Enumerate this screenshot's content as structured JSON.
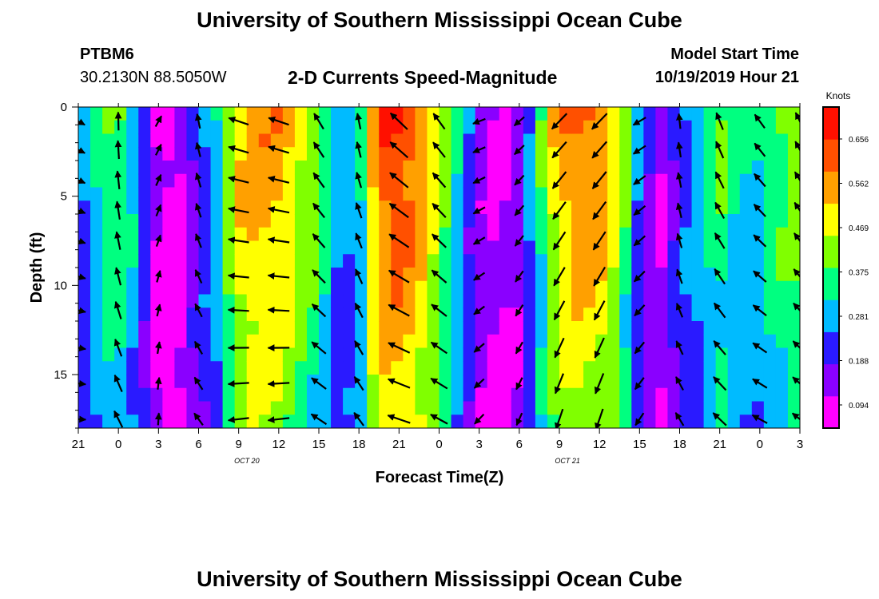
{
  "page": {
    "title_top": "University of Southern Mississippi Ocean Cube",
    "title_bottom": "University of Southern Mississippi Ocean Cube",
    "station": "PTBM6",
    "coords": "30.2130N 88.5050W",
    "subtitle": "2-D Currents Speed-Magnitude",
    "model_label": "Model Start Time",
    "model_time": "10/19/2019 Hour 21"
  },
  "chart_data": {
    "type": "heatmap",
    "title": "2-D Currents Speed-Magnitude",
    "xlabel": "Forecast Time(Z)",
    "ylabel": "Depth (ft)",
    "x_tick_labels": [
      "21",
      "0",
      "3",
      "6",
      "9",
      "12",
      "15",
      "18",
      "21",
      "0",
      "3",
      "6",
      "9",
      "12",
      "15",
      "18",
      "21",
      "0",
      "3"
    ],
    "x_range_hours": [
      0,
      54
    ],
    "date_labels": [
      {
        "text": "OCT 20",
        "hour": 15
      },
      {
        "text": "OCT 21",
        "hour": 39
      }
    ],
    "y_ticks": [
      0,
      5,
      10,
      15
    ],
    "ylim": [
      0,
      18
    ],
    "y_inverted": true,
    "colorbar": {
      "label": "Knots",
      "ticks": [
        "0.656",
        "0.562",
        "0.469",
        "0.375",
        "0.281",
        "0.188",
        "0.094"
      ],
      "min": 0.0,
      "max": 0.75,
      "colors": [
        "#ff00ff",
        "#8a00ff",
        "#2a1aff",
        "#00bbff",
        "#00ff80",
        "#80ff00",
        "#ffff00",
        "#ffa000",
        "#ff5000",
        "#ff1000"
      ]
    },
    "speed_profile_by_hour": [
      [
        0,
        0.2
      ],
      [
        1.5,
        0.34
      ],
      [
        3,
        0.4
      ],
      [
        4.5,
        0.28
      ],
      [
        6,
        0.05
      ],
      [
        7.5,
        0.05
      ],
      [
        9,
        0.2
      ],
      [
        10.5,
        0.32
      ],
      [
        12,
        0.55
      ],
      [
        13.5,
        0.6
      ],
      [
        15,
        0.58
      ],
      [
        16.5,
        0.5
      ],
      [
        18,
        0.4
      ],
      [
        19.5,
        0.25
      ],
      [
        21,
        0.28
      ],
      [
        22.5,
        0.68
      ],
      [
        24,
        0.7
      ],
      [
        25.5,
        0.62
      ],
      [
        27,
        0.46
      ],
      [
        28.5,
        0.28
      ],
      [
        30,
        0.12
      ],
      [
        31.5,
        0.06
      ],
      [
        33,
        0.12
      ],
      [
        34.5,
        0.35
      ],
      [
        36,
        0.58
      ],
      [
        37.5,
        0.62
      ],
      [
        39,
        0.6
      ],
      [
        40.5,
        0.48
      ],
      [
        42,
        0.2
      ],
      [
        43.5,
        0.08
      ],
      [
        45,
        0.22
      ],
      [
        46.5,
        0.3
      ],
      [
        48,
        0.4
      ],
      [
        49.5,
        0.3
      ],
      [
        51,
        0.32
      ],
      [
        52.5,
        0.4
      ],
      [
        54,
        0.45
      ]
    ],
    "arrow_directions_deg_by_hour": [
      [
        0,
        -30
      ],
      [
        1.5,
        80
      ],
      [
        3,
        90
      ],
      [
        4.5,
        120
      ],
      [
        6,
        60
      ],
      [
        7.5,
        70
      ],
      [
        9,
        100
      ],
      [
        10.5,
        120
      ],
      [
        12,
        160
      ],
      [
        13.5,
        165
      ],
      [
        15,
        160
      ],
      [
        16.5,
        150
      ],
      [
        18,
        120
      ],
      [
        19.5,
        100
      ],
      [
        21,
        100
      ],
      [
        22.5,
        135
      ],
      [
        24,
        135
      ],
      [
        25.5,
        130
      ],
      [
        27,
        125
      ],
      [
        28.5,
        160
      ],
      [
        30,
        200
      ],
      [
        31.5,
        215
      ],
      [
        33,
        220
      ],
      [
        34.5,
        215
      ],
      [
        36,
        225
      ],
      [
        37.5,
        215
      ],
      [
        39,
        225
      ],
      [
        40.5,
        225
      ],
      [
        42,
        210
      ],
      [
        43.5,
        90
      ],
      [
        45,
        95
      ],
      [
        46.5,
        100
      ],
      [
        48,
        110
      ],
      [
        49.5,
        130
      ],
      [
        51,
        125
      ],
      [
        52.5,
        120
      ],
      [
        54,
        115
      ]
    ]
  }
}
